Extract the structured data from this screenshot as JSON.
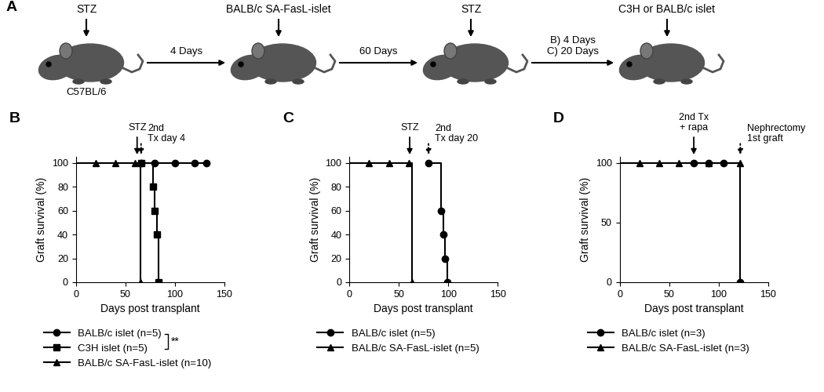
{
  "diagram": {
    "panel": "A",
    "strain": "C57BL/6",
    "steps": [
      "STZ",
      "BALB/c SA-FasL-islet",
      "STZ",
      "C3H or BALB/c islet"
    ],
    "intervals": [
      "4 Days",
      "60 Days",
      "B) 4 Days\nC) 20 Days"
    ]
  },
  "chart_data": [
    {
      "panel": "B",
      "type": "step",
      "x_label": "Days post transplant",
      "y_label": "Graft survival (%)",
      "xlim": [
        0,
        150
      ],
      "xticks": [
        0,
        50,
        100,
        150
      ],
      "ylim": [
        0,
        105
      ],
      "yticks": [
        0,
        20,
        40,
        60,
        80,
        100
      ],
      "legend": "below",
      "series": [
        {
          "name": "BALB/c islet (n=5)",
          "color": "#000000",
          "marker": "circle",
          "line_style": "solid",
          "x": [
            66,
            80,
            100,
            120,
            132
          ],
          "values": [
            100,
            100,
            100,
            100,
            100
          ]
        },
        {
          "name": "C3H islet (n=5)",
          "color": "#000000",
          "marker": "square",
          "line_style": "solid",
          "x": [
            66,
            78,
            80,
            82,
            84
          ],
          "values": [
            100,
            80,
            60,
            40,
            0
          ]
        },
        {
          "name": "BALB/c SA-FasL-islet (n=10)",
          "color": "#000000",
          "marker": "triangle",
          "line_style": "solid",
          "x": [
            0,
            20,
            40,
            60,
            65
          ],
          "values": [
            100,
            100,
            100,
            100,
            0
          ]
        }
      ],
      "annotations": [
        {
          "text": "STZ",
          "x": 62,
          "line_style": "solid"
        },
        {
          "text": "2nd\nTx day 4",
          "x": 66,
          "line_style": "dotted"
        }
      ],
      "significance": {
        "text": "**",
        "between": [
          "BALB/c islet (n=5)",
          "C3H islet (n=5)"
        ]
      }
    },
    {
      "panel": "C",
      "type": "step",
      "x_label": "Days post transplant",
      "y_label": "Graft survival (%)",
      "xlim": [
        0,
        150
      ],
      "xticks": [
        0,
        50,
        100,
        150
      ],
      "ylim": [
        0,
        105
      ],
      "yticks": [
        0,
        20,
        40,
        60,
        80,
        100
      ],
      "legend": "below",
      "series": [
        {
          "name": "BALB/c islet (n=5)",
          "color": "#000000",
          "marker": "circle",
          "line_style": "solid",
          "x": [
            80,
            93,
            95,
            97,
            99
          ],
          "values": [
            100,
            60,
            40,
            20,
            0
          ]
        },
        {
          "name": "BALB/c SA-FasL-islet (n=5)",
          "color": "#000000",
          "marker": "triangle",
          "line_style": "solid",
          "x": [
            0,
            20,
            40,
            60,
            63
          ],
          "values": [
            100,
            100,
            100,
            100,
            0
          ]
        }
      ],
      "annotations": [
        {
          "text": "STZ",
          "x": 61,
          "line_style": "solid"
        },
        {
          "text": "2nd\nTx day 20",
          "x": 80,
          "line_style": "dotted"
        }
      ]
    },
    {
      "panel": "D",
      "type": "step",
      "x_label": "Days post transplant",
      "y_label": "Graft survival (%)",
      "xlim": [
        0,
        150
      ],
      "xticks": [
        0,
        50,
        100,
        150
      ],
      "ylim": [
        0,
        105
      ],
      "yticks": [
        0,
        50,
        100
      ],
      "legend": "below",
      "series": [
        {
          "name": "BALB/c islet (n=3)",
          "color": "#000000",
          "marker": "circle",
          "line_style": "solid",
          "x": [
            75,
            90,
            105,
            122
          ],
          "values": [
            100,
            100,
            100,
            0
          ]
        },
        {
          "name": "BALB/c SA-FasL-islet (n=3)",
          "color": "#000000",
          "marker": "triangle",
          "line_style": "solid",
          "x": [
            0,
            20,
            40,
            60,
            90,
            122
          ],
          "values": [
            100,
            100,
            100,
            100,
            100,
            100
          ]
        }
      ],
      "annotations": [
        {
          "text": "2nd Tx\n+ rapa",
          "x": 75,
          "line_style": "solid"
        },
        {
          "text": "Nephrectomy\n1st graft",
          "x": 122,
          "line_style": "dotted"
        }
      ]
    }
  ]
}
